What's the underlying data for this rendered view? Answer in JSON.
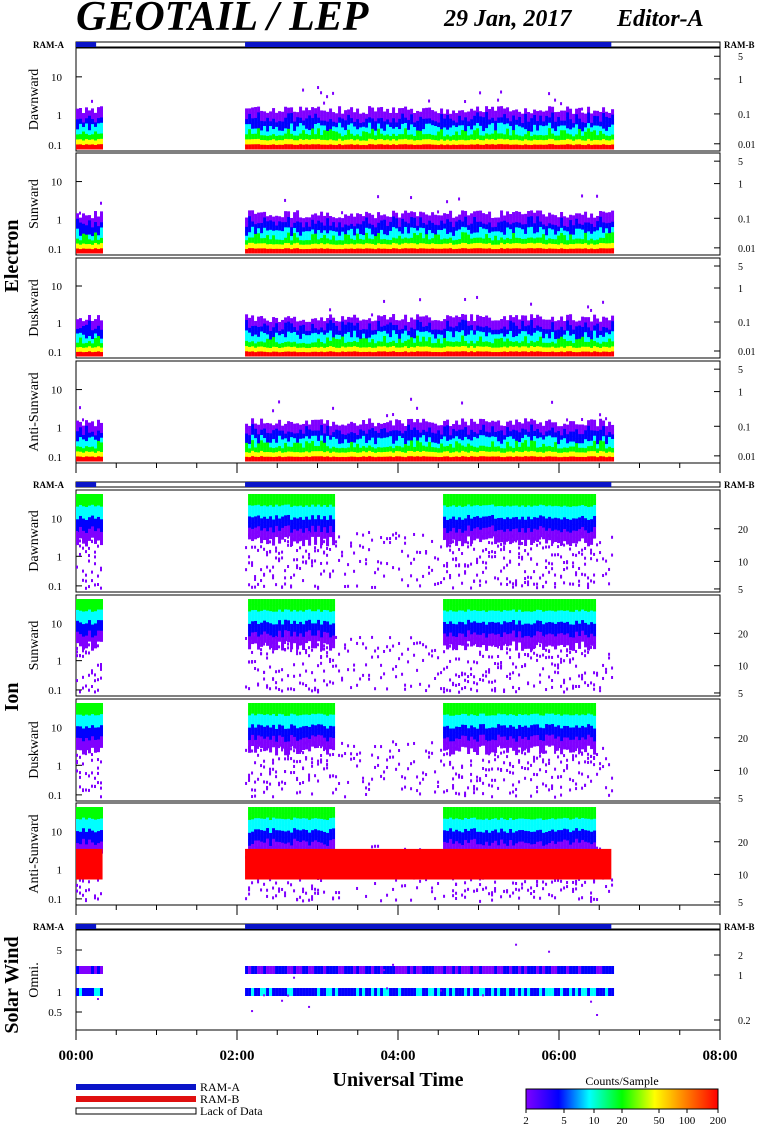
{
  "header": {
    "title": "GEOTAIL / LEP",
    "date": "29 Jan, 2017",
    "editor": "Editor-A"
  },
  "ram_labels": {
    "a": "RAM-A",
    "b": "RAM-B"
  },
  "groups": [
    {
      "name": "Electron"
    },
    {
      "name": "Ion"
    },
    {
      "name": "Solar Wind"
    }
  ],
  "panels": [
    {
      "group": 0,
      "label": "Dawnward",
      "left_ticks": [
        "0.1",
        "1",
        "10"
      ],
      "right_ticks": [
        "0.01",
        "0.1",
        "1",
        "5"
      ]
    },
    {
      "group": 0,
      "label": "Sunward",
      "left_ticks": [
        "0.1",
        "1",
        "10"
      ],
      "right_ticks": [
        "0.01",
        "0.1",
        "1",
        "5"
      ]
    },
    {
      "group": 0,
      "label": "Duskward",
      "left_ticks": [
        "0.1",
        "1",
        "10"
      ],
      "right_ticks": [
        "0.01",
        "0.1",
        "1",
        "5"
      ]
    },
    {
      "group": 0,
      "label": "Anti-Sunward",
      "left_ticks": [
        "0.1",
        "1",
        "10"
      ],
      "right_ticks": [
        "0.01",
        "0.1",
        "1",
        "5"
      ]
    },
    {
      "group": 1,
      "label": "Dawnward",
      "left_ticks": [
        "0.1",
        "1",
        "10"
      ],
      "right_ticks": [
        "5",
        "10",
        "20"
      ]
    },
    {
      "group": 1,
      "label": "Sunward",
      "left_ticks": [
        "0.1",
        "1",
        "10"
      ],
      "right_ticks": [
        "5",
        "10",
        "20"
      ]
    },
    {
      "group": 1,
      "label": "Duskward",
      "left_ticks": [
        "0.1",
        "1",
        "10"
      ],
      "right_ticks": [
        "5",
        "10",
        "20"
      ]
    },
    {
      "group": 1,
      "label": "Anti-Sunward",
      "left_ticks": [
        "0.1",
        "1",
        "10"
      ],
      "right_ticks": [
        "5",
        "10",
        "20"
      ]
    },
    {
      "group": 2,
      "label": "Omni.",
      "left_ticks": [
        "0.5",
        "1",
        "5"
      ],
      "right_ticks": [
        "0.2",
        "1",
        "2"
      ]
    }
  ],
  "x_axis": {
    "label": "Universal Time",
    "ticks": [
      "00:00",
      "02:00",
      "04:00",
      "06:00",
      "08:00"
    ],
    "range_hours": [
      0,
      8
    ]
  },
  "legend": {
    "items": [
      {
        "label": "RAM-A",
        "color": "#0a14c8"
      },
      {
        "label": "RAM-B",
        "color": "#e01010"
      },
      {
        "label": "Lack of Data",
        "color": "#ffffff"
      }
    ]
  },
  "colorbar": {
    "title": "Counts/Sample",
    "ticks": [
      "2",
      "5",
      "10",
      "20",
      "50",
      "100",
      "200"
    ]
  },
  "chart_data": {
    "type": "heatmap",
    "title": "GEOTAIL / LEP",
    "xlabel": "Universal Time",
    "x_ticks": [
      "00:00",
      "02:00",
      "04:00",
      "06:00",
      "08:00"
    ],
    "data_intervals_hours": [
      [
        0.0,
        0.33
      ],
      [
        2.1,
        6.65
      ]
    ],
    "ram_a_intervals_hours": [
      [
        0.0,
        0.25
      ],
      [
        2.1,
        6.65
      ]
    ],
    "colorscale": [
      "#8000ff",
      "#0000ff",
      "#00ffff",
      "#00ff00",
      "#ffff00",
      "#ff8000",
      "#ff0000"
    ],
    "counts_range": [
      2,
      200
    ]
  }
}
